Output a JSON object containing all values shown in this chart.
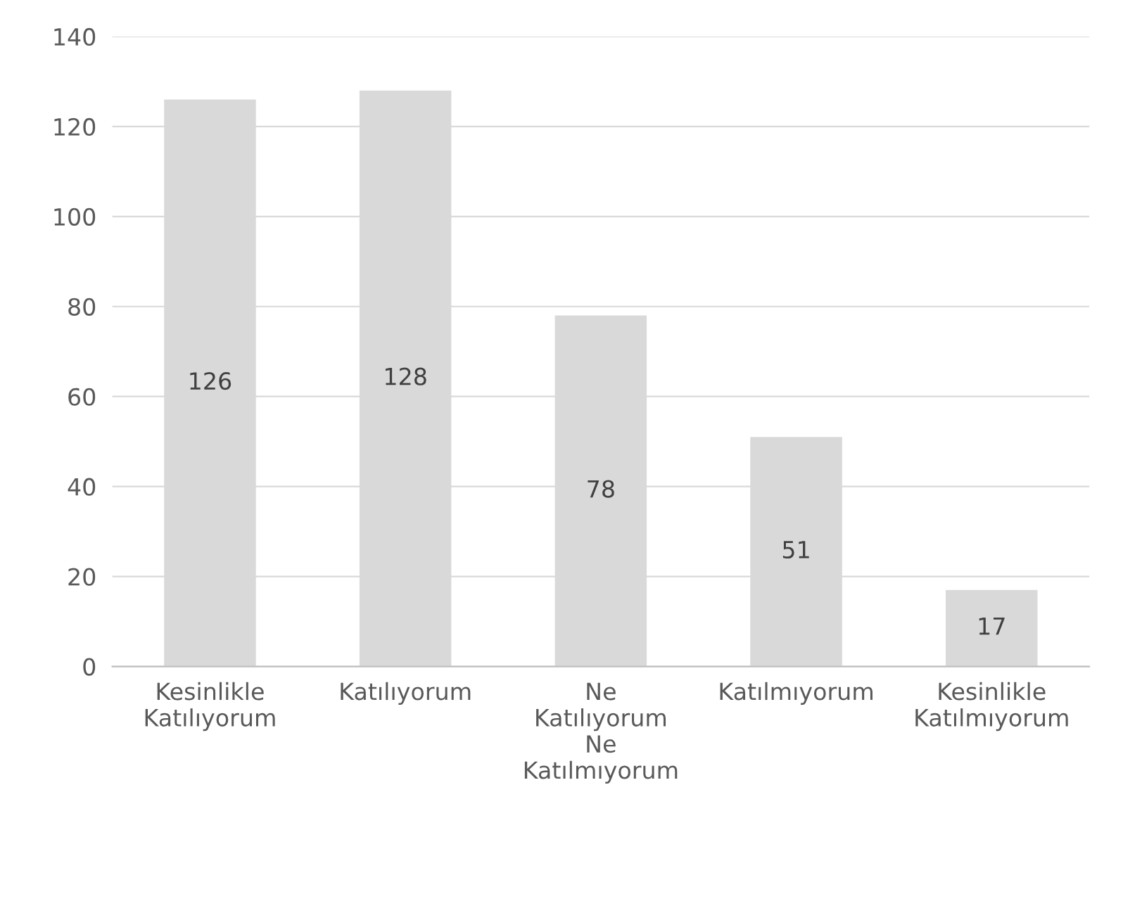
{
  "chart_data": {
    "type": "bar",
    "categories": [
      "Kesinlikle\nKatılıyorum",
      "Katılıyorum",
      "Ne\nKatılıyorum\nNe\nKatılmıyorum",
      "Katılmıyorum",
      "Kesinlikle\nKatılmıyorum"
    ],
    "values": [
      126,
      128,
      78,
      51,
      17
    ],
    "color": "#d9d9d9",
    "ylim": [
      0,
      140
    ],
    "yticks": [
      0,
      20,
      40,
      60,
      80,
      100,
      120,
      140
    ],
    "grid": "y",
    "data_labels": true
  }
}
